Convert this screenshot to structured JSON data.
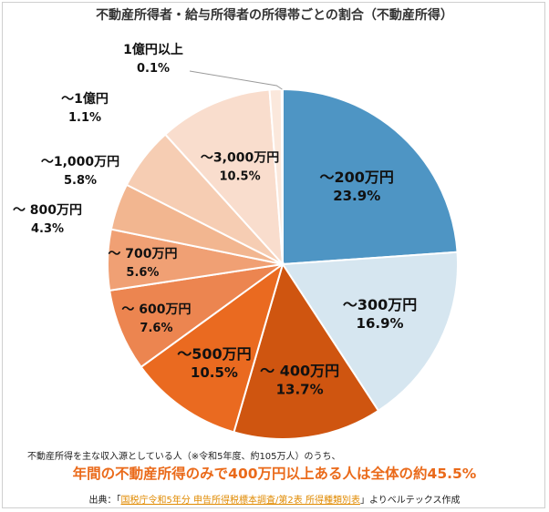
{
  "chart_data": {
    "type": "pie",
    "title": "不動産所得者・給与所得者の所得帯ごとの割合（不動産所得）",
    "slices": [
      {
        "label": "～200万円",
        "percent_text": "23.9%",
        "value": 23.9,
        "color": "#4e95c4",
        "text_color": "#111111"
      },
      {
        "label": "～300万円",
        "percent_text": "16.9%",
        "value": 16.9,
        "color": "#d6e6f0",
        "text_color": "#111111"
      },
      {
        "label": "～ 400万円",
        "percent_text": "13.7%",
        "value": 13.7,
        "color": "#cf5510",
        "text_color": "#111111"
      },
      {
        "label": "～500万円",
        "percent_text": "10.5%",
        "value": 10.5,
        "color": "#ea6a20",
        "text_color": "#111111"
      },
      {
        "label": "～ 600万円",
        "percent_text": "7.6%",
        "value": 7.6,
        "color": "#ec8550",
        "text_color": "#111111"
      },
      {
        "label": "～ 700万円",
        "percent_text": "5.6%",
        "value": 5.6,
        "color": "#f0a074",
        "text_color": "#111111"
      },
      {
        "label": "～ 800万円",
        "percent_text": "4.3%",
        "value": 4.3,
        "color": "#f2b690",
        "text_color": "#111111"
      },
      {
        "label": "～1,000万円",
        "percent_text": "5.8%",
        "value": 5.8,
        "color": "#f6cdb3",
        "text_color": "#111111"
      },
      {
        "label": "～3,000万円",
        "percent_text": "10.5%",
        "value": 10.5,
        "color": "#f9ddcd",
        "text_color": "#111111"
      },
      {
        "label": "～1億円",
        "percent_text": "1.1%",
        "value": 1.1,
        "color": "#fbe8dc",
        "text_color": "#111111"
      },
      {
        "label": "1億円以上",
        "percent_text": "0.1%",
        "value": 0.1,
        "color": "#fdf1ea",
        "text_color": "#111111"
      }
    ]
  },
  "footer": {
    "note": "不動産所得を主な収入源としている人（※令和5年度、約105万人）のうち、",
    "headline": "年間の不動産所得のみで400万円以上ある人は全体の約45.5%",
    "source_prefix": "出典：「",
    "source_link": "国税庁令和5年分 申告所得税標本調査/第2表 所得種類別表",
    "source_suffix": "」よりベルテックス作成"
  }
}
